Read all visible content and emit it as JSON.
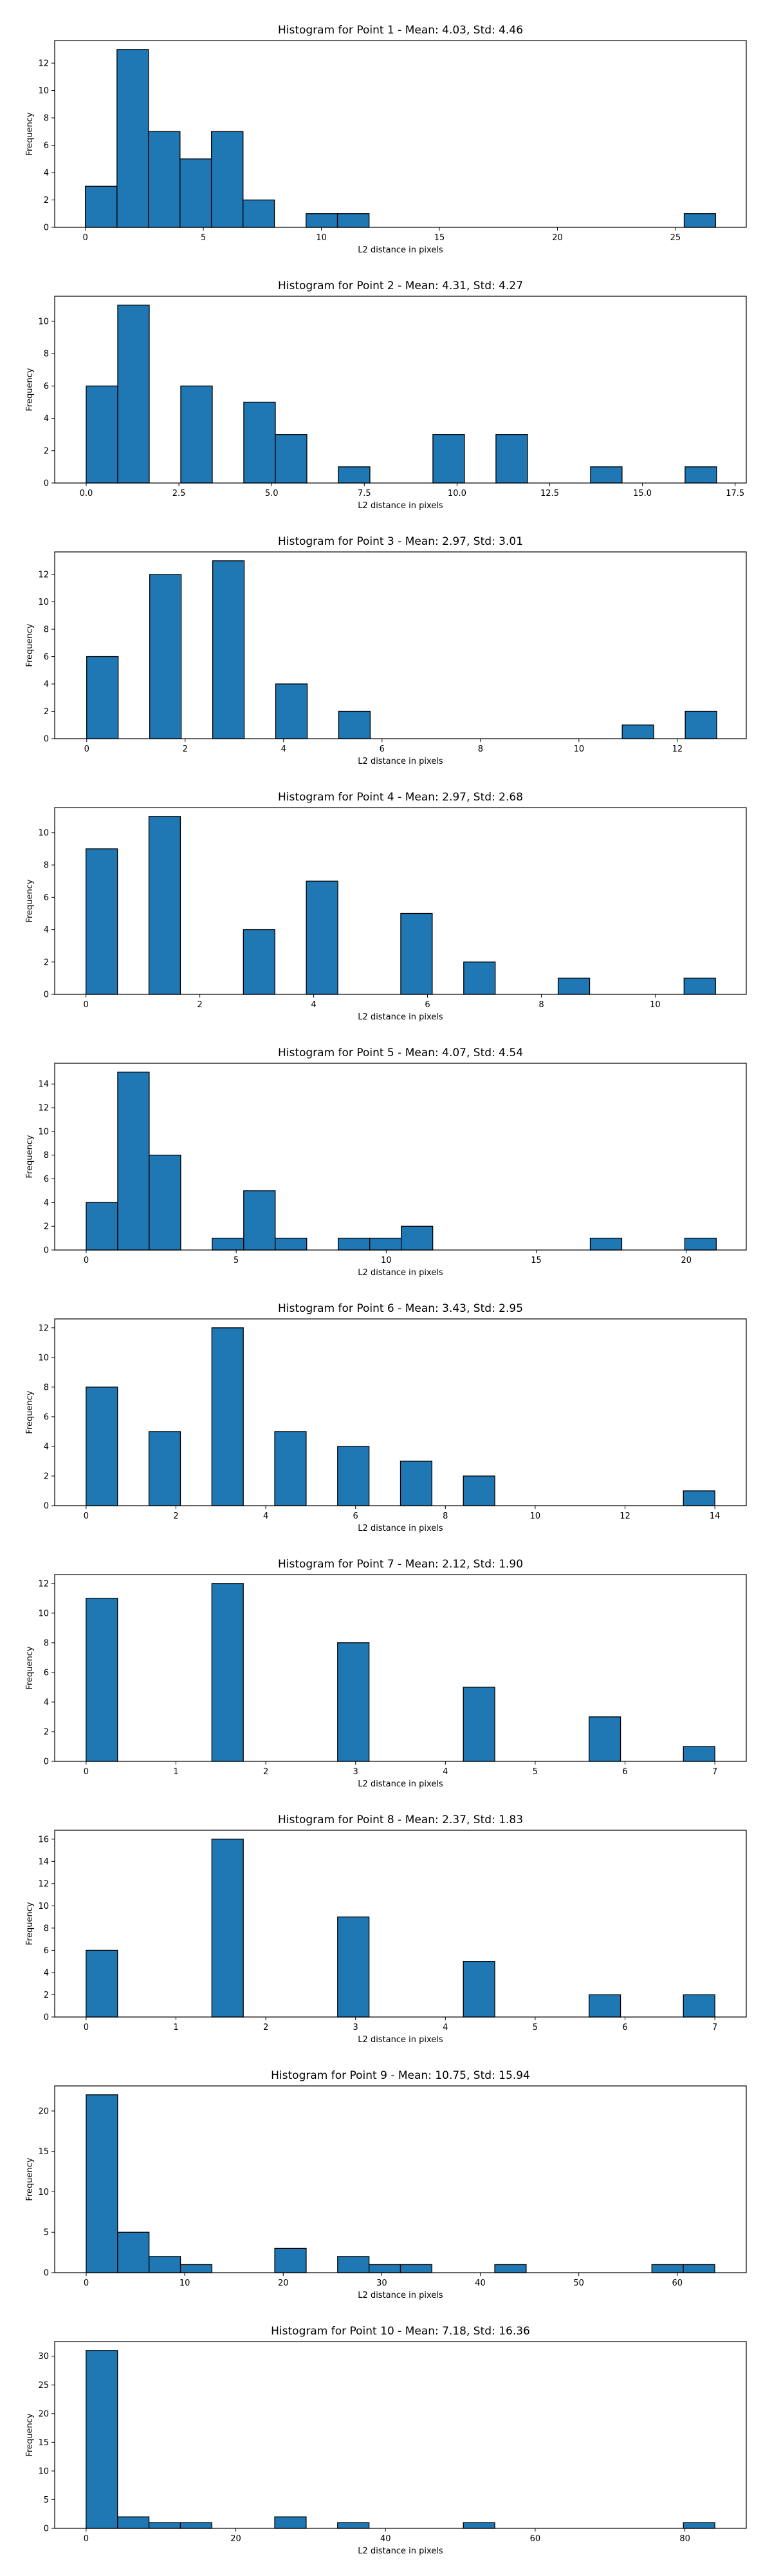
{
  "chart_data": [
    {
      "type": "bar",
      "title": "Histogram for Point 1 - Mean: 4.03, Std: 4.46",
      "xlabel": "L2 distance in pixels",
      "ylabel": "Frequency",
      "xlim": [
        -1.3,
        28.0
      ],
      "ylim": [
        0,
        13.65
      ],
      "xticks": [
        0,
        5,
        10,
        15,
        20,
        25
      ],
      "xtick_labels": [
        "0",
        "5",
        "10",
        "15",
        "20",
        "25"
      ],
      "yticks": [
        0,
        2,
        4,
        6,
        8,
        10,
        12
      ],
      "bin_edges": [
        0,
        1.34,
        2.67,
        4.01,
        5.34,
        6.68,
        8.01,
        9.35,
        10.68,
        12.02,
        13.35,
        14.69,
        16.02,
        17.36,
        18.69,
        20.03,
        21.36,
        22.7,
        24.03,
        25.37,
        26.7
      ],
      "counts": [
        3,
        13,
        7,
        5,
        7,
        2,
        0,
        1,
        1,
        0,
        0,
        0,
        0,
        0,
        0,
        0,
        0,
        0,
        0,
        1
      ],
      "bar_color": "#1f77b4",
      "edge_color": "#000000"
    },
    {
      "type": "bar",
      "title": "Histogram for Point 2 - Mean: 4.31, Std: 4.27",
      "xlabel": "L2 distance in pixels",
      "ylabel": "Frequency",
      "xlim": [
        -0.85,
        17.8
      ],
      "ylim": [
        0,
        11.55
      ],
      "xticks": [
        0,
        2.5,
        5,
        7.5,
        10,
        12.5,
        15,
        17.5
      ],
      "xtick_labels": [
        "0.0",
        "2.5",
        "5.0",
        "7.5",
        "10.0",
        "12.5",
        "15.0",
        "17.5"
      ],
      "yticks": [
        0,
        2,
        4,
        6,
        8,
        10
      ],
      "bin_edges": [
        0,
        0.85,
        1.7,
        2.55,
        3.4,
        4.25,
        5.1,
        5.95,
        6.8,
        7.65,
        8.5,
        9.35,
        10.2,
        11.05,
        11.9,
        12.75,
        13.6,
        14.45,
        15.3,
        16.15,
        17.0
      ],
      "counts": [
        6,
        11,
        0,
        6,
        0,
        5,
        3,
        0,
        1,
        0,
        0,
        3,
        0,
        3,
        0,
        0,
        1,
        0,
        0,
        1
      ],
      "bar_color": "#1f77b4",
      "edge_color": "#000000"
    },
    {
      "type": "bar",
      "title": "Histogram for Point 3 - Mean: 2.97, Std: 3.01",
      "xlabel": "L2 distance in pixels",
      "ylabel": "Frequency",
      "xlim": [
        -0.65,
        13.4
      ],
      "ylim": [
        0,
        13.65
      ],
      "xticks": [
        0,
        2,
        4,
        6,
        8,
        10,
        12
      ],
      "xtick_labels": [
        "0",
        "2",
        "4",
        "6",
        "8",
        "10",
        "12"
      ],
      "yticks": [
        0,
        2,
        4,
        6,
        8,
        10,
        12
      ],
      "bin_edges": [
        0,
        0.64,
        1.28,
        1.92,
        2.56,
        3.2,
        3.84,
        4.48,
        5.12,
        5.76,
        6.4,
        7.04,
        7.68,
        8.32,
        8.96,
        9.6,
        10.24,
        10.88,
        11.52,
        12.16,
        12.8
      ],
      "counts": [
        6,
        0,
        12,
        0,
        13,
        0,
        4,
        0,
        2,
        0,
        0,
        0,
        0,
        0,
        0,
        0,
        0,
        1,
        0,
        2
      ],
      "bar_color": "#1f77b4",
      "edge_color": "#000000"
    },
    {
      "type": "bar",
      "title": "Histogram for Point 4 - Mean: 2.97, Std: 2.68",
      "xlabel": "L2 distance in pixels",
      "ylabel": "Frequency",
      "xlim": [
        -0.55,
        11.6
      ],
      "ylim": [
        0,
        11.55
      ],
      "xticks": [
        0,
        2,
        4,
        6,
        8,
        10
      ],
      "xtick_labels": [
        "0",
        "2",
        "4",
        "6",
        "8",
        "10"
      ],
      "yticks": [
        0,
        2,
        4,
        6,
        8,
        10
      ],
      "bin_edges": [
        0,
        0.553,
        1.106,
        1.659,
        2.212,
        2.765,
        3.318,
        3.871,
        4.424,
        4.977,
        5.53,
        6.083,
        6.636,
        7.189,
        7.742,
        8.295,
        8.848,
        9.401,
        9.954,
        10.507,
        11.06
      ],
      "counts": [
        9,
        0,
        11,
        0,
        0,
        4,
        0,
        7,
        0,
        0,
        5,
        0,
        2,
        0,
        0,
        1,
        0,
        0,
        0,
        1
      ],
      "bar_color": "#1f77b4",
      "edge_color": "#000000"
    },
    {
      "type": "bar",
      "title": "Histogram for Point 5 - Mean: 4.07, Std: 4.54",
      "xlabel": "L2 distance in pixels",
      "ylabel": "Frequency",
      "xlim": [
        -1.05,
        22.0
      ],
      "ylim": [
        0,
        15.75
      ],
      "xticks": [
        0,
        5,
        10,
        15,
        20
      ],
      "xtick_labels": [
        "0",
        "5",
        "10",
        "15",
        "20"
      ],
      "yticks": [
        0,
        2,
        4,
        6,
        8,
        10,
        12,
        14
      ],
      "bin_edges": [
        0,
        1.05,
        2.1,
        3.15,
        4.2,
        5.25,
        6.3,
        7.35,
        8.4,
        9.45,
        10.5,
        11.55,
        12.6,
        13.65,
        14.7,
        15.75,
        16.8,
        17.85,
        18.9,
        19.95,
        21.0
      ],
      "counts": [
        4,
        15,
        8,
        0,
        1,
        5,
        1,
        0,
        1,
        1,
        2,
        0,
        0,
        0,
        0,
        0,
        1,
        0,
        0,
        1
      ],
      "bar_color": "#1f77b4",
      "edge_color": "#000000"
    },
    {
      "type": "bar",
      "title": "Histogram for Point 6 - Mean: 3.43, Std: 2.95",
      "xlabel": "L2 distance in pixels",
      "ylabel": "Frequency",
      "xlim": [
        -0.7,
        14.7
      ],
      "ylim": [
        0,
        12.6
      ],
      "xticks": [
        0,
        2,
        4,
        6,
        8,
        10,
        12,
        14
      ],
      "xtick_labels": [
        "0",
        "2",
        "4",
        "6",
        "8",
        "10",
        "12",
        "14"
      ],
      "yticks": [
        0,
        2,
        4,
        6,
        8,
        10,
        12
      ],
      "bin_edges": [
        0,
        0.7,
        1.4,
        2.1,
        2.8,
        3.5,
        4.2,
        4.9,
        5.6,
        6.3,
        7.0,
        7.7,
        8.4,
        9.1,
        9.8,
        10.5,
        11.2,
        11.9,
        12.6,
        13.3,
        14.0
      ],
      "counts": [
        8,
        0,
        5,
        0,
        12,
        0,
        5,
        0,
        4,
        0,
        3,
        0,
        2,
        0,
        0,
        0,
        0,
        0,
        0,
        1
      ],
      "bar_color": "#1f77b4",
      "edge_color": "#000000"
    },
    {
      "type": "bar",
      "title": "Histogram for Point 7 - Mean: 2.12, Std: 1.90",
      "xlabel": "L2 distance in pixels",
      "ylabel": "Frequency",
      "xlim": [
        -0.35,
        7.35
      ],
      "ylim": [
        0,
        12.6
      ],
      "xticks": [
        0,
        1,
        2,
        3,
        4,
        5,
        6,
        7
      ],
      "xtick_labels": [
        "0",
        "1",
        "2",
        "3",
        "4",
        "5",
        "6",
        "7"
      ],
      "yticks": [
        0,
        2,
        4,
        6,
        8,
        10,
        12
      ],
      "bin_edges": [
        0,
        0.35,
        0.7,
        1.05,
        1.4,
        1.75,
        2.1,
        2.45,
        2.8,
        3.15,
        3.5,
        3.85,
        4.2,
        4.55,
        4.9,
        5.25,
        5.6,
        5.95,
        6.3,
        6.65,
        7.0
      ],
      "counts": [
        11,
        0,
        0,
        0,
        12,
        0,
        0,
        0,
        8,
        0,
        0,
        0,
        5,
        0,
        0,
        0,
        3,
        0,
        0,
        1
      ],
      "bar_color": "#1f77b4",
      "edge_color": "#000000"
    },
    {
      "type": "bar",
      "title": "Histogram for Point 8 - Mean: 2.37, Std: 1.83",
      "xlabel": "L2 distance in pixels",
      "ylabel": "Frequency",
      "xlim": [
        -0.35,
        7.35
      ],
      "ylim": [
        0,
        16.8
      ],
      "xticks": [
        0,
        1,
        2,
        3,
        4,
        5,
        6,
        7
      ],
      "xtick_labels": [
        "0",
        "1",
        "2",
        "3",
        "4",
        "5",
        "6",
        "7"
      ],
      "yticks": [
        0,
        2,
        4,
        6,
        8,
        10,
        12,
        14,
        16
      ],
      "bin_edges": [
        0,
        0.35,
        0.7,
        1.05,
        1.4,
        1.75,
        2.1,
        2.45,
        2.8,
        3.15,
        3.5,
        3.85,
        4.2,
        4.55,
        4.9,
        5.25,
        5.6,
        5.95,
        6.3,
        6.65,
        7.0
      ],
      "counts": [
        6,
        0,
        0,
        0,
        16,
        0,
        0,
        0,
        9,
        0,
        0,
        0,
        5,
        0,
        0,
        0,
        2,
        0,
        0,
        2
      ],
      "bar_color": "#1f77b4",
      "edge_color": "#000000"
    },
    {
      "type": "bar",
      "title": "Histogram for Point 9 - Mean: 10.75, Std: 15.94",
      "xlabel": "L2 distance in pixels",
      "ylabel": "Frequency",
      "xlim": [
        -3.2,
        67.0
      ],
      "ylim": [
        0,
        23.1
      ],
      "xticks": [
        0,
        10,
        20,
        30,
        40,
        50,
        60
      ],
      "xtick_labels": [
        "0",
        "10",
        "20",
        "30",
        "40",
        "50",
        "60"
      ],
      "yticks": [
        0,
        5,
        10,
        15,
        20
      ],
      "bin_edges": [
        0,
        3.19,
        6.38,
        9.57,
        12.76,
        15.95,
        19.14,
        22.33,
        25.52,
        28.71,
        31.9,
        35.09,
        38.28,
        41.47,
        44.66,
        47.85,
        51.04,
        54.23,
        57.42,
        60.61,
        63.8
      ],
      "counts": [
        22,
        5,
        2,
        1,
        0,
        0,
        3,
        0,
        2,
        1,
        1,
        0,
        0,
        1,
        0,
        0,
        0,
        0,
        1,
        1
      ],
      "bar_color": "#1f77b4",
      "edge_color": "#000000"
    },
    {
      "type": "bar",
      "title": "Histogram for Point 10 - Mean: 7.18, Std: 16.36",
      "xlabel": "L2 distance in pixels",
      "ylabel": "Frequency",
      "xlim": [
        -4.2,
        88.2
      ],
      "ylim": [
        0,
        32.55
      ],
      "xticks": [
        0,
        20,
        40,
        60,
        80
      ],
      "xtick_labels": [
        "0",
        "20",
        "40",
        "60",
        "80"
      ],
      "yticks": [
        0,
        5,
        10,
        15,
        20,
        25,
        30
      ],
      "bin_edges": [
        0,
        4.2,
        8.4,
        12.6,
        16.8,
        21.0,
        25.2,
        29.4,
        33.6,
        37.8,
        42.0,
        46.2,
        50.4,
        54.6,
        58.8,
        63.0,
        67.2,
        71.4,
        75.6,
        79.8,
        84.0
      ],
      "counts": [
        31,
        2,
        1,
        1,
        0,
        0,
        2,
        0,
        1,
        0,
        0,
        0,
        1,
        0,
        0,
        0,
        0,
        0,
        0,
        1
      ],
      "bar_color": "#1f77b4",
      "edge_color": "#000000"
    }
  ]
}
